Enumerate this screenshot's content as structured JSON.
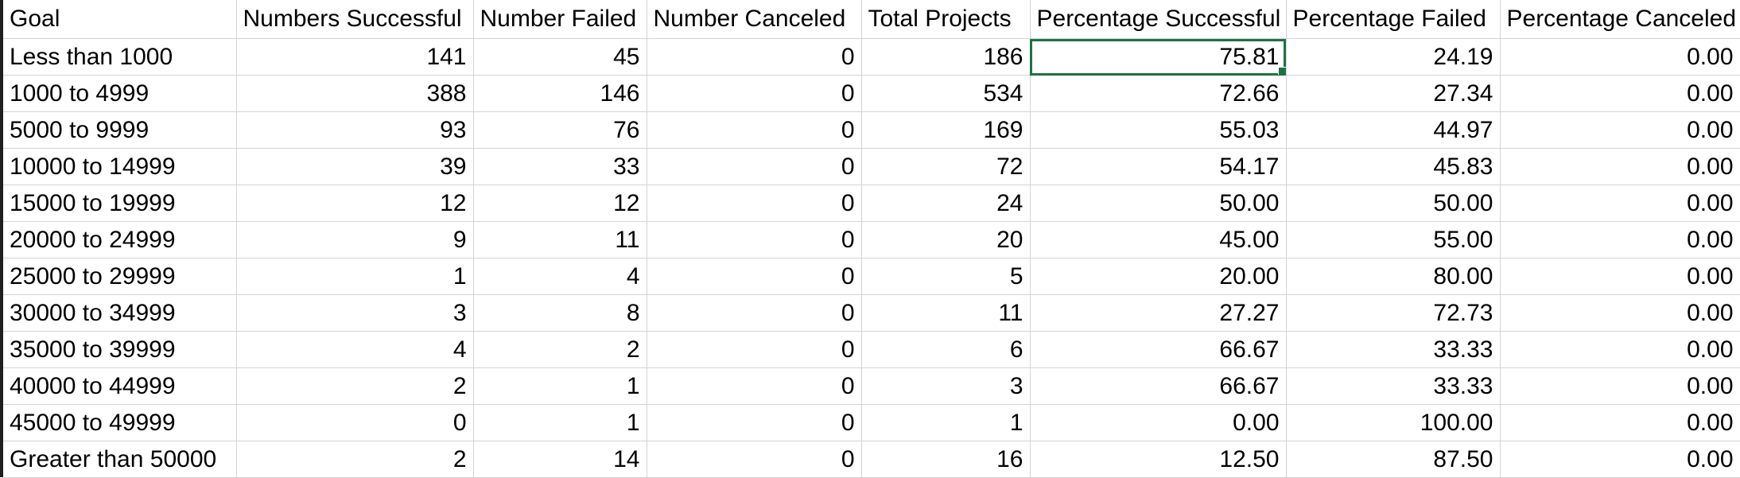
{
  "sheet": {
    "headers": [
      "Goal",
      "Numbers Successful",
      "Number Failed",
      "Number Canceled",
      "Total Projects",
      "Percentage Successful",
      "Percentage Failed",
      "Percentage Canceled"
    ],
    "rows": [
      [
        "Less than 1000",
        "141",
        "45",
        "0",
        "186",
        "75.81",
        "24.19",
        "0.00"
      ],
      [
        "1000 to 4999",
        "388",
        "146",
        "0",
        "534",
        "72.66",
        "27.34",
        "0.00"
      ],
      [
        "5000 to 9999",
        "93",
        "76",
        "0",
        "169",
        "55.03",
        "44.97",
        "0.00"
      ],
      [
        "10000 to 14999",
        "39",
        "33",
        "0",
        "72",
        "54.17",
        "45.83",
        "0.00"
      ],
      [
        "15000 to 19999",
        "12",
        "12",
        "0",
        "24",
        "50.00",
        "50.00",
        "0.00"
      ],
      [
        "20000 to 24999",
        "9",
        "11",
        "0",
        "20",
        "45.00",
        "55.00",
        "0.00"
      ],
      [
        "25000 to 29999",
        "1",
        "4",
        "0",
        "5",
        "20.00",
        "80.00",
        "0.00"
      ],
      [
        "30000 to 34999",
        "3",
        "8",
        "0",
        "11",
        "27.27",
        "72.73",
        "0.00"
      ],
      [
        "35000 to 39999",
        "4",
        "2",
        "0",
        "6",
        "66.67",
        "33.33",
        "0.00"
      ],
      [
        "40000 to 44999",
        "2",
        "1",
        "0",
        "3",
        "66.67",
        "33.33",
        "0.00"
      ],
      [
        "45000 to 49999",
        "0",
        "1",
        "0",
        "1",
        "0.00",
        "100.00",
        "0.00"
      ],
      [
        "Greater than 50000",
        "2",
        "14",
        "0",
        "16",
        "12.50",
        "87.50",
        "0.00"
      ]
    ],
    "selected_cell": {
      "row": 0,
      "col": 5
    },
    "colors": {
      "gridline": "#d4d4d4",
      "selection": "#1e7145",
      "left_edge": "#1f1f1f"
    }
  }
}
